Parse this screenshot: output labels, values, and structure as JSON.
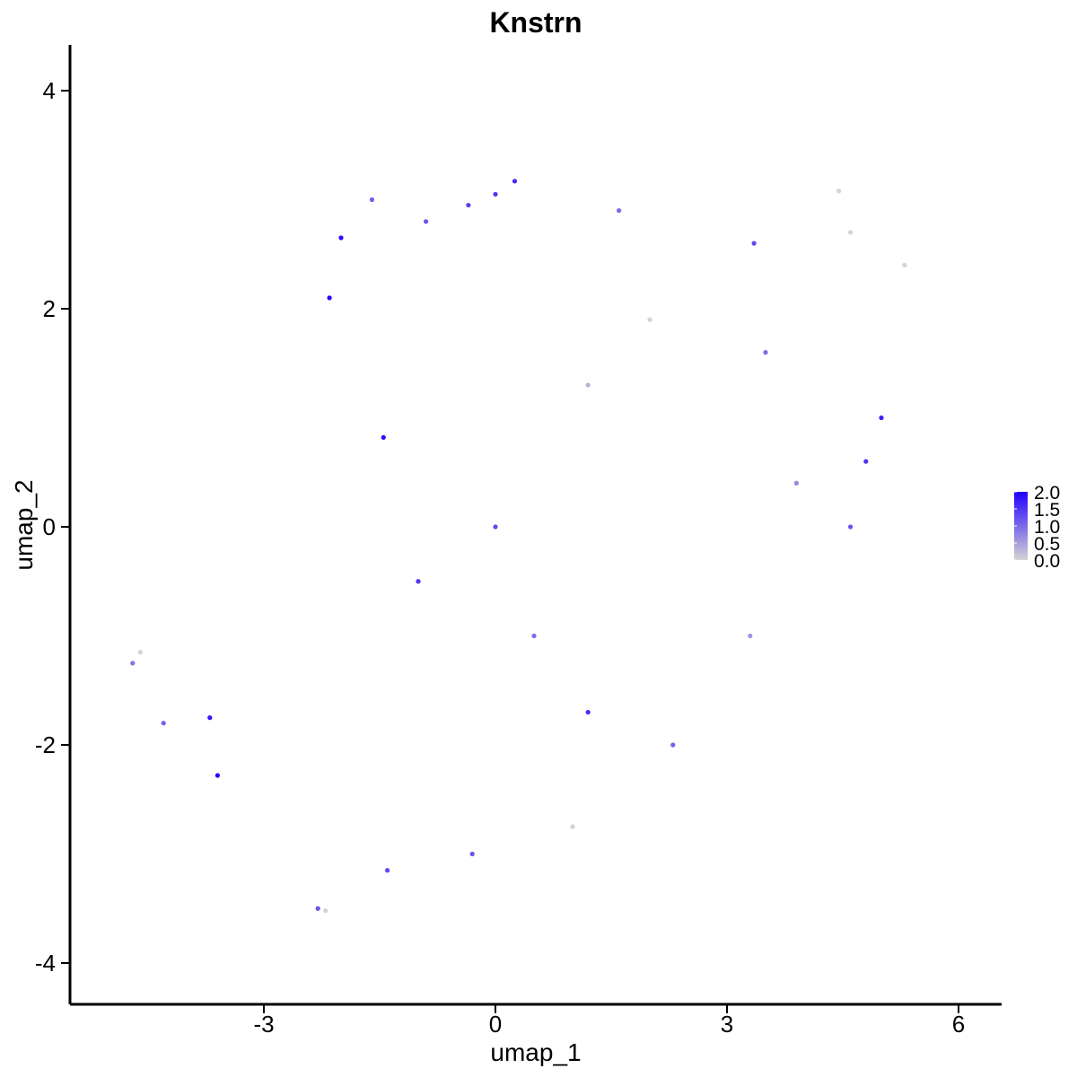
{
  "chart_data": {
    "type": "scatter",
    "title": "Knstrn",
    "xlabel": "umap_1",
    "ylabel": "umap_2",
    "xlim": [
      -5.4,
      6.6
    ],
    "ylim": [
      -4.4,
      4.4
    ],
    "x_ticks": [
      -3,
      0,
      3,
      6
    ],
    "x_tick_labels": [
      "-3",
      "0",
      "3",
      "6"
    ],
    "y_ticks": [
      -4,
      -2,
      0,
      2,
      4
    ],
    "y_tick_labels": [
      "-4",
      "-2",
      "0",
      "2",
      "4"
    ],
    "grid": false,
    "color_scale": {
      "low_color": "#d3d3d3",
      "high_color": "#2200ff",
      "min": 0.0,
      "max": 2.0,
      "breaks": [
        0.0,
        0.5,
        1.0,
        1.5,
        2.0
      ],
      "labels": [
        "0.0",
        "0.5",
        "1.0",
        "1.5",
        "2.0"
      ],
      "legend_position": "right"
    },
    "points": [
      {
        "x": 0.25,
        "y": 3.17,
        "value": 1.6
      },
      {
        "x": -1.6,
        "y": 3.0,
        "value": 1.1
      },
      {
        "x": -0.35,
        "y": 2.95,
        "value": 1.4
      },
      {
        "x": 0.0,
        "y": 3.05,
        "value": 1.5
      },
      {
        "x": -0.9,
        "y": 2.8,
        "value": 1.2
      },
      {
        "x": -2.0,
        "y": 2.65,
        "value": 1.9
      },
      {
        "x": -2.15,
        "y": 2.1,
        "value": 2.0
      },
      {
        "x": -1.45,
        "y": 0.82,
        "value": 1.9
      },
      {
        "x": 1.6,
        "y": 2.9,
        "value": 1.0
      },
      {
        "x": 3.35,
        "y": 2.6,
        "value": 1.3
      },
      {
        "x": 4.45,
        "y": 3.08,
        "value": 0.0
      },
      {
        "x": 4.6,
        "y": 2.7,
        "value": 0.0
      },
      {
        "x": 5.3,
        "y": 2.4,
        "value": 0.0
      },
      {
        "x": 5.0,
        "y": 1.0,
        "value": 1.7
      },
      {
        "x": 4.8,
        "y": 0.6,
        "value": 1.5
      },
      {
        "x": 3.5,
        "y": 1.6,
        "value": 1.0
      },
      {
        "x": 2.0,
        "y": 1.9,
        "value": 0.0
      },
      {
        "x": 1.2,
        "y": 1.3,
        "value": 0.3
      },
      {
        "x": -3.6,
        "y": -2.28,
        "value": 2.0
      },
      {
        "x": -3.7,
        "y": -1.75,
        "value": 1.8
      },
      {
        "x": -4.7,
        "y": -1.25,
        "value": 0.9
      },
      {
        "x": -4.6,
        "y": -1.15,
        "value": 0.0
      },
      {
        "x": -4.3,
        "y": -1.8,
        "value": 1.1
      },
      {
        "x": -2.3,
        "y": -3.5,
        "value": 1.2
      },
      {
        "x": -2.2,
        "y": -3.52,
        "value": 0.0
      },
      {
        "x": -1.4,
        "y": -3.15,
        "value": 1.3
      },
      {
        "x": -0.3,
        "y": -3.0,
        "value": 1.2
      },
      {
        "x": 1.0,
        "y": -2.75,
        "value": 0.0
      },
      {
        "x": 1.2,
        "y": -1.7,
        "value": 1.6
      },
      {
        "x": 2.3,
        "y": -2.0,
        "value": 1.1
      },
      {
        "x": 3.3,
        "y": -1.0,
        "value": 0.6
      },
      {
        "x": 4.6,
        "y": 0.0,
        "value": 1.2
      },
      {
        "x": 3.9,
        "y": 0.4,
        "value": 0.7
      },
      {
        "x": 0.0,
        "y": 0.0,
        "value": 1.3
      },
      {
        "x": -1.0,
        "y": -0.5,
        "value": 1.5
      },
      {
        "x": 0.5,
        "y": -1.0,
        "value": 1.0
      }
    ]
  }
}
